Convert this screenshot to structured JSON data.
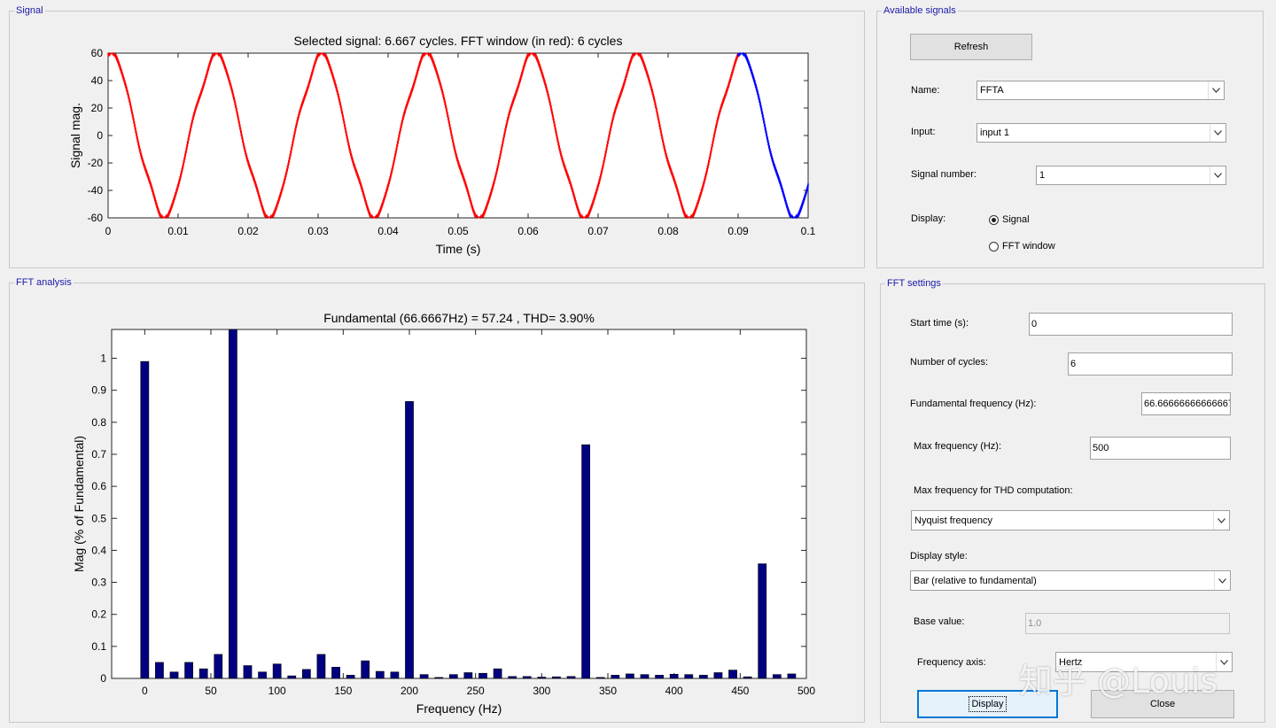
{
  "signal_panel": {
    "title": "Signal",
    "chart_title": "Selected signal: 6.667 cycles. FFT window (in red): 6 cycles",
    "chart_data": {
      "type": "line",
      "title": "Selected signal: 6.667 cycles. FFT window (in red): 6 cycles",
      "xlabel": "Time (s)",
      "ylabel": "Signal mag.",
      "xlim": [
        0,
        0.1
      ],
      "ylim": [
        -60,
        60
      ],
      "x_ticks": [
        "0",
        "0.01",
        "0.02",
        "0.03",
        "0.04",
        "0.05",
        "0.06",
        "0.07",
        "0.08",
        "0.09",
        "0.1"
      ],
      "y_ticks": [
        "60",
        "40",
        "20",
        "0",
        "-20",
        "-40",
        "-60"
      ],
      "fundamental_hz": 66.6667,
      "amplitude": 57.24,
      "total_cycles": 6.667,
      "fft_window_cycles": 6,
      "series": [
        {
          "name": "FFT window",
          "color": "#ff0000",
          "x_range": [
            0,
            0.09
          ]
        },
        {
          "name": "",
          "color": "#0000ff",
          "x_range": [
            0.09,
            0.1
          ]
        }
      ]
    }
  },
  "available_signals": {
    "title": "Available signals",
    "refresh_label": "Refresh",
    "name_label": "Name:",
    "name_value": "FFTA",
    "input_label": "Input:",
    "input_value": "input 1",
    "signal_number_label": "Signal number:",
    "signal_number_value": "1",
    "display_label": "Display:",
    "display_options": [
      "Signal",
      "FFT window"
    ],
    "display_selected": "Signal"
  },
  "fft_panel": {
    "title": "FFT analysis",
    "chart_title": "Fundamental (66.6667Hz) = 57.24 , THD= 3.90%",
    "chart_data": {
      "type": "bar",
      "title": "Fundamental (66.6667Hz) = 57.24 , THD= 3.90%",
      "xlabel": "Frequency (Hz)",
      "ylabel": "Mag (% of Fundamental)",
      "xlim": [
        -25,
        500
      ],
      "ylim": [
        0,
        1.09
      ],
      "x_ticks": [
        "0",
        "50",
        "100",
        "150",
        "200",
        "250",
        "300",
        "350",
        "400",
        "450",
        "500"
      ],
      "y_ticks": [
        "0",
        "0.1",
        "0.2",
        "0.3",
        "0.4",
        "0.5",
        "0.6",
        "0.7",
        "0.8",
        "0.9",
        "1"
      ],
      "bar_color": "#000080",
      "x": [
        0,
        11.11,
        22.22,
        33.33,
        44.44,
        55.56,
        66.67,
        77.78,
        88.89,
        100,
        111.11,
        122.22,
        133.33,
        144.44,
        155.56,
        166.67,
        177.78,
        188.89,
        200,
        211.11,
        222.22,
        233.33,
        244.44,
        255.56,
        266.67,
        277.78,
        288.89,
        300,
        311.11,
        322.22,
        333.33,
        344.44,
        355.56,
        366.67,
        377.78,
        388.89,
        400,
        411.11,
        422.22,
        433.33,
        444.44,
        455.56,
        466.67,
        477.78,
        488.89
      ],
      "values": [
        0.99,
        0.05,
        0.02,
        0.05,
        0.03,
        0.075,
        1.09,
        0.04,
        0.02,
        0.045,
        0.008,
        0.028,
        0.075,
        0.035,
        0.01,
        0.055,
        0.022,
        0.02,
        0.865,
        0.012,
        0.003,
        0.012,
        0.018,
        0.016,
        0.03,
        0.006,
        0.006,
        0.004,
        0.005,
        0.006,
        0.73,
        0.003,
        0.01,
        0.014,
        0.012,
        0.01,
        0.013,
        0.012,
        0.01,
        0.018,
        0.026,
        0.005,
        0.358,
        0.012,
        0.014
      ]
    }
  },
  "fft_settings": {
    "title": "FFT settings",
    "start_time_label": "Start time (s):",
    "start_time_value": "0",
    "num_cycles_label": "Number of cycles:",
    "num_cycles_value": "6",
    "fund_freq_label": "Fundamental frequency (Hz):",
    "fund_freq_value": "66.666666666666671",
    "max_freq_label": "Max frequency (Hz):",
    "max_freq_value": "500",
    "max_freq_thd_label": "Max frequency for THD computation:",
    "max_freq_thd_value": "Nyquist frequency",
    "display_style_label": "Display style:",
    "display_style_value": "Bar (relative to fundamental)",
    "base_value_label": "Base value:",
    "base_value_value": "1.0",
    "freq_axis_label": "Frequency axis:",
    "freq_axis_value": "Hertz",
    "display_button": "Display",
    "close_button": "Close"
  },
  "watermark": "知乎 @Louis"
}
